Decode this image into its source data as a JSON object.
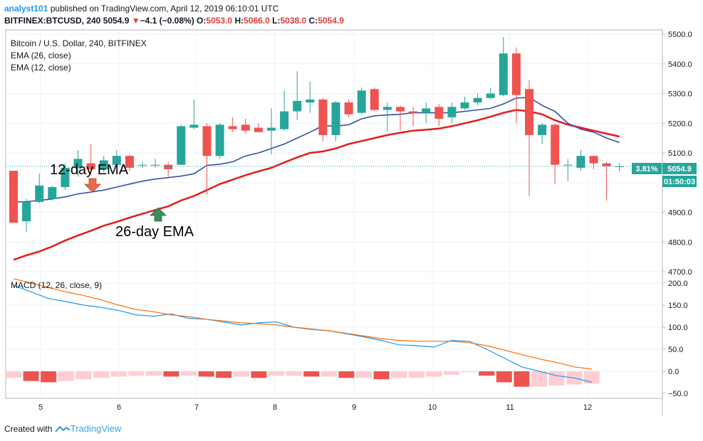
{
  "header": {
    "user": "analyst101",
    "published_text": "published on TradingView.com, April 12, 2019 06:10:01 UTC",
    "symbol": "BITFINEX:BTCUSD, 240",
    "last": "5054.9",
    "change_arrow": "▼",
    "change": "−4.1 (−0.08%)",
    "o_label": "O:",
    "o": "5053.0",
    "h_label": "H:",
    "h": "5066.0",
    "l_label": "L:",
    "l": "5038.0",
    "c_label": "C:",
    "c": "5054.9"
  },
  "legend": {
    "title": "Bitcoin / U.S. Dollar, 240, BITFINEX",
    "ema26": "EMA (26, close)",
    "ema12": "EMA (12, close)"
  },
  "annotations": {
    "ema12_text": "12-day EMA",
    "ema26_text": "26-day EMA"
  },
  "price_badges": {
    "pct": "3.81%",
    "price": "5054.9",
    "countdown": "01:50:03"
  },
  "footer": {
    "created_with": "Created with",
    "brand": "TradingView"
  },
  "colors": {
    "up": "#26a69a",
    "down": "#ef5350",
    "ema26": "#e31b1b",
    "ema12": "#3a4fa3",
    "macd": "#2196f3",
    "signal": "#ff6d00",
    "hist_dark": "#ef5350",
    "hist_light": "#ffcdd2",
    "badge": "#26a69a"
  },
  "chart_data": [
    {
      "type": "candlestick",
      "title": "Bitcoin / U.S. Dollar, 240, BITFINEX",
      "x_tick_labels": [
        "5",
        "6",
        "7",
        "8",
        "9",
        "10",
        "11",
        "12"
      ],
      "y_tick_labels": [
        "4700.0",
        "4800.0",
        "4900.0",
        "5000.0",
        "5100.0",
        "5200.0",
        "5300.0",
        "5400.0",
        "5500.0"
      ],
      "ylim": [
        4700,
        5500
      ],
      "candles": [
        {
          "o": 5040,
          "h": 5040,
          "l": 4865,
          "c": 4865
        },
        {
          "o": 4870,
          "h": 4945,
          "l": 4835,
          "c": 4935
        },
        {
          "o": 4935,
          "h": 5030,
          "l": 4930,
          "c": 4990
        },
        {
          "o": 4945,
          "h": 4990,
          "l": 4940,
          "c": 4985
        },
        {
          "o": 4985,
          "h": 5065,
          "l": 4975,
          "c": 5050
        },
        {
          "o": 5050,
          "h": 5110,
          "l": 5020,
          "c": 5080
        },
        {
          "o": 5065,
          "h": 5130,
          "l": 5025,
          "c": 5045
        },
        {
          "o": 5045,
          "h": 5090,
          "l": 5035,
          "c": 5075
        },
        {
          "o": 5060,
          "h": 5110,
          "l": 5050,
          "c": 5090
        },
        {
          "o": 5090,
          "h": 5095,
          "l": 5040,
          "c": 5050
        },
        {
          "o": 5060,
          "h": 5070,
          "l": 5050,
          "c": 5060
        },
        {
          "o": 5060,
          "h": 5080,
          "l": 5050,
          "c": 5060
        },
        {
          "o": 5060,
          "h": 5070,
          "l": 5020,
          "c": 5045
        },
        {
          "o": 5060,
          "h": 5195,
          "l": 5060,
          "c": 5190
        },
        {
          "o": 5185,
          "h": 5280,
          "l": 5180,
          "c": 5195
        },
        {
          "o": 5190,
          "h": 5200,
          "l": 4960,
          "c": 5090
        },
        {
          "o": 5090,
          "h": 5200,
          "l": 5080,
          "c": 5195
        },
        {
          "o": 5190,
          "h": 5220,
          "l": 5170,
          "c": 5180
        },
        {
          "o": 5195,
          "h": 5215,
          "l": 5165,
          "c": 5175
        },
        {
          "o": 5185,
          "h": 5200,
          "l": 5170,
          "c": 5170
        },
        {
          "o": 5175,
          "h": 5250,
          "l": 5095,
          "c": 5185
        },
        {
          "o": 5180,
          "h": 5310,
          "l": 5175,
          "c": 5240
        },
        {
          "o": 5240,
          "h": 5375,
          "l": 5210,
          "c": 5275
        },
        {
          "o": 5270,
          "h": 5340,
          "l": 5235,
          "c": 5280
        },
        {
          "o": 5280,
          "h": 5285,
          "l": 5140,
          "c": 5160
        },
        {
          "o": 5160,
          "h": 5275,
          "l": 5140,
          "c": 5270
        },
        {
          "o": 5270,
          "h": 5280,
          "l": 5220,
          "c": 5230
        },
        {
          "o": 5235,
          "h": 5320,
          "l": 5230,
          "c": 5310
        },
        {
          "o": 5315,
          "h": 5320,
          "l": 5240,
          "c": 5245
        },
        {
          "o": 5245,
          "h": 5270,
          "l": 5170,
          "c": 5255
        },
        {
          "o": 5255,
          "h": 5260,
          "l": 5175,
          "c": 5240
        },
        {
          "o": 5240,
          "h": 5255,
          "l": 5190,
          "c": 5235
        },
        {
          "o": 5235,
          "h": 5270,
          "l": 5200,
          "c": 5250
        },
        {
          "o": 5255,
          "h": 5265,
          "l": 5190,
          "c": 5215
        },
        {
          "o": 5220,
          "h": 5270,
          "l": 5200,
          "c": 5255
        },
        {
          "o": 5250,
          "h": 5290,
          "l": 5245,
          "c": 5270
        },
        {
          "o": 5270,
          "h": 5300,
          "l": 5260,
          "c": 5285
        },
        {
          "o": 5285,
          "h": 5320,
          "l": 5280,
          "c": 5300
        },
        {
          "o": 5295,
          "h": 5490,
          "l": 5290,
          "c": 5435
        },
        {
          "o": 5435,
          "h": 5455,
          "l": 5200,
          "c": 5295
        },
        {
          "o": 5315,
          "h": 5345,
          "l": 4955,
          "c": 5160
        },
        {
          "o": 5160,
          "h": 5200,
          "l": 5130,
          "c": 5195
        },
        {
          "o": 5195,
          "h": 5200,
          "l": 4995,
          "c": 5060
        },
        {
          "o": 5060,
          "h": 5080,
          "l": 5005,
          "c": 5060
        },
        {
          "o": 5050,
          "h": 5110,
          "l": 5040,
          "c": 5090
        },
        {
          "o": 5090,
          "h": 5090,
          "l": 5045,
          "c": 5065
        },
        {
          "o": 5065,
          "h": 5070,
          "l": 4940,
          "c": 5055
        },
        {
          "o": 5053,
          "h": 5066,
          "l": 5038,
          "c": 5054.9
        }
      ],
      "ema12": [
        4935,
        4936,
        4940,
        4945,
        4952,
        4962,
        4968,
        4975,
        4985,
        4995,
        5005,
        5012,
        5017,
        5022,
        5030,
        5058,
        5062,
        5070,
        5090,
        5100,
        5115,
        5130,
        5150,
        5170,
        5192,
        5190,
        5195,
        5215,
        5225,
        5228,
        5230,
        5235,
        5235,
        5235,
        5235,
        5240,
        5245,
        5250,
        5265,
        5285,
        5287,
        5260,
        5240,
        5200,
        5180,
        5170,
        5150,
        5135
      ],
      "ema26": [
        4740,
        4755,
        4768,
        4785,
        4805,
        4822,
        4838,
        4855,
        4868,
        4882,
        4895,
        4908,
        4920,
        4940,
        4955,
        4975,
        4995,
        5010,
        5025,
        5038,
        5050,
        5068,
        5085,
        5100,
        5105,
        5115,
        5130,
        5140,
        5150,
        5160,
        5168,
        5175,
        5178,
        5182,
        5190,
        5200,
        5210,
        5222,
        5235,
        5245,
        5240,
        5230,
        5210,
        5195,
        5185,
        5175,
        5165,
        5155
      ],
      "ema_label_points": [
        {
          "label": "12-day EMA",
          "arrow": "down",
          "index": 6
        },
        {
          "label": "26-day EMA",
          "arrow": "up",
          "index": 11
        }
      ],
      "last_price": 5054.9
    },
    {
      "type": "line",
      "title": "MACD (12, 26, close, 9)",
      "y_tick_labels": [
        "−50.0",
        "0.0",
        "50.0",
        "100.0",
        "150.0",
        "200.0"
      ],
      "ylim": [
        -50,
        200
      ],
      "series": [
        {
          "name": "MACD",
          "values": [
            195,
            180,
            165,
            158,
            150,
            145,
            138,
            128,
            125,
            130,
            120,
            118,
            112,
            105,
            110,
            112,
            100,
            95,
            92,
            85,
            78,
            70,
            60,
            58,
            55,
            70,
            68,
            50,
            30,
            10,
            0,
            -10,
            -15,
            -25
          ]
        },
        {
          "name": "Signal",
          "values": [
            210,
            200,
            190,
            180,
            172,
            162,
            150,
            140,
            135,
            128,
            124,
            118,
            114,
            110,
            108,
            105,
            100,
            96,
            92,
            86,
            80,
            74,
            70,
            68,
            68,
            68,
            65,
            58,
            48,
            38,
            28,
            20,
            10,
            5
          ]
        }
      ],
      "histogram": [
        -15,
        -22,
        -25,
        -22,
        -18,
        -15,
        -12,
        -10,
        -10,
        -12,
        -10,
        -12,
        -15,
        -12,
        -15,
        -10,
        -10,
        -12,
        -12,
        -15,
        -15,
        -18,
        -15,
        -15,
        -12,
        -8,
        -2,
        -10,
        -25,
        -35,
        -35,
        -32,
        -30,
        -28
      ]
    }
  ]
}
